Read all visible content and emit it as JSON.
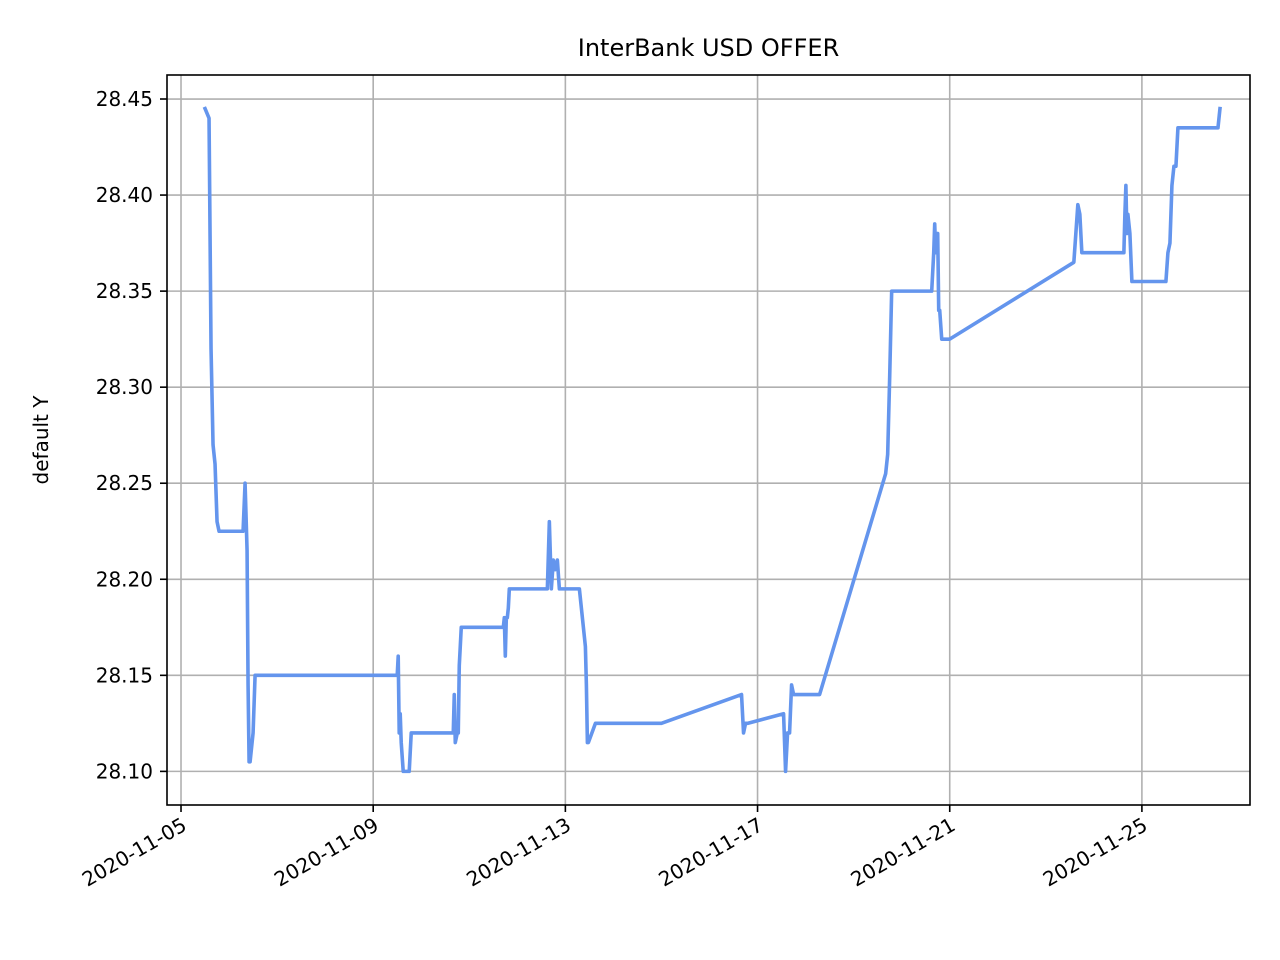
{
  "chart_data": {
    "type": "line",
    "title": "InterBank USD  OFFER",
    "xlabel": "",
    "ylabel": "default Y",
    "x_type": "date",
    "xlim": [
      "2020-11-04T17:00",
      "2020-11-27T06:00"
    ],
    "ylim": [
      28.0825,
      28.4625
    ],
    "grid": true,
    "line_color": "#6495ED",
    "x_ticks": [
      "2020-11-05",
      "2020-11-09",
      "2020-11-13",
      "2020-11-17",
      "2020-11-21",
      "2020-11-25"
    ],
    "y_ticks": [
      "28.10",
      "28.15",
      "28.20",
      "28.25",
      "28.30",
      "28.35",
      "28.40",
      "28.45"
    ],
    "series": [
      {
        "x": [
          "2020-11-05T12:00",
          "2020-11-05T14:00",
          "2020-11-05T15:00",
          "2020-11-05T16:00",
          "2020-11-05T17:00",
          "2020-11-05T18:00",
          "2020-11-05T19:00",
          "2020-11-05T20:00",
          "2020-11-05T21:00",
          "2020-11-05T22:00",
          "2020-11-06T07:00",
          "2020-11-06T08:00",
          "2020-11-06T09:00",
          "2020-11-06T09:30",
          "2020-11-06T10:00",
          "2020-11-06T10:30",
          "2020-11-06T11:00",
          "2020-11-06T12:00",
          "2020-11-06T13:00",
          "2020-11-06T13:30",
          "2020-11-06T14:00",
          "2020-11-06T15:00",
          "2020-11-06T16:00",
          "2020-11-09T12:00",
          "2020-11-09T12:30",
          "2020-11-09T13:00",
          "2020-11-09T13:30",
          "2020-11-09T14:00",
          "2020-11-09T15:00",
          "2020-11-09T16:00",
          "2020-11-09T18:00",
          "2020-11-09T19:00",
          "2020-11-09T20:00",
          "2020-11-09T21:00",
          "2020-11-10T16:00",
          "2020-11-10T16:30",
          "2020-11-10T17:00",
          "2020-11-10T18:00",
          "2020-11-10T18:30",
          "2020-11-10T19:00",
          "2020-11-10T20:00",
          "2020-11-10T21:00",
          "2020-11-10T22:00",
          "2020-11-11T17:00",
          "2020-11-11T17:30",
          "2020-11-11T18:00",
          "2020-11-11T18:30",
          "2020-11-11T19:00",
          "2020-11-11T19:30",
          "2020-11-11T20:00",
          "2020-11-11T21:00",
          "2020-11-11T22:00",
          "2020-11-12T15:00",
          "2020-11-12T16:00",
          "2020-11-12T17:00",
          "2020-11-12T18:00",
          "2020-11-12T19:00",
          "2020-11-12T20:00",
          "2020-11-12T21:00",
          "2020-11-12T22:00",
          "2020-11-13T07:00",
          "2020-11-13T10:00",
          "2020-11-13T10:30",
          "2020-11-13T11:00",
          "2020-11-13T11:30",
          "2020-11-13T15:00",
          "2020-11-15T00:00",
          "2020-11-16T16:00",
          "2020-11-16T17:00",
          "2020-11-16T18:00",
          "2020-11-16T19:00",
          "2020-11-17T13:00",
          "2020-11-17T14:00",
          "2020-11-17T15:00",
          "2020-11-17T16:00",
          "2020-11-17T17:00",
          "2020-11-17T18:00",
          "2020-11-17T19:00",
          "2020-11-17T20:00",
          "2020-11-17T22:00",
          "2020-11-18T07:00",
          "2020-11-19T16:00",
          "2020-11-19T17:00",
          "2020-11-19T18:00",
          "2020-11-19T19:00",
          "2020-11-19T20:00",
          "2020-11-19T21:00",
          "2020-11-19T22:00",
          "2020-11-20T15:00",
          "2020-11-20T15:30",
          "2020-11-20T16:00",
          "2020-11-20T16:30",
          "2020-11-20T17:00",
          "2020-11-20T18:00",
          "2020-11-20T18:30",
          "2020-11-20T19:00",
          "2020-11-20T20:00",
          "2020-11-20T21:00",
          "2020-11-20T22:00",
          "2020-11-21T00:00",
          "2020-11-23T14:00",
          "2020-11-23T15:00",
          "2020-11-23T16:00",
          "2020-11-23T17:00",
          "2020-11-23T18:00",
          "2020-11-23T19:00",
          "2020-11-23T20:00",
          "2020-11-24T15:00",
          "2020-11-24T15:30",
          "2020-11-24T16:00",
          "2020-11-24T16:30",
          "2020-11-24T17:00",
          "2020-11-24T18:00",
          "2020-11-24T19:00",
          "2020-11-24T20:00",
          "2020-11-24T21:00",
          "2020-11-24T22:00",
          "2020-11-25T12:00",
          "2020-11-25T13:00",
          "2020-11-25T14:00",
          "2020-11-25T15:00",
          "2020-11-25T16:00",
          "2020-11-25T17:00",
          "2020-11-25T18:00",
          "2020-11-25T20:00",
          "2020-11-26T14:00",
          "2020-11-26T15:00"
        ],
        "y": [
          28.445,
          28.44,
          28.32,
          28.27,
          28.26,
          28.23,
          28.225,
          28.225,
          28.225,
          28.225,
          28.225,
          28.25,
          28.215,
          28.145,
          28.105,
          28.105,
          28.11,
          28.12,
          28.15,
          28.15,
          28.15,
          28.15,
          28.15,
          28.15,
          28.16,
          28.12,
          28.13,
          28.115,
          28.1,
          28.1,
          28.1,
          28.12,
          28.12,
          28.12,
          28.12,
          28.14,
          28.115,
          28.12,
          28.12,
          28.155,
          28.175,
          28.175,
          28.175,
          28.175,
          28.18,
          28.16,
          28.18,
          28.18,
          28.185,
          28.195,
          28.195,
          28.195,
          28.195,
          28.23,
          28.195,
          28.21,
          28.205,
          28.21,
          28.195,
          28.195,
          28.195,
          28.165,
          28.145,
          28.115,
          28.115,
          28.125,
          28.125,
          28.14,
          28.12,
          28.125,
          28.125,
          28.13,
          28.1,
          28.12,
          28.12,
          28.145,
          28.14,
          28.14,
          28.14,
          28.14,
          28.14,
          28.255,
          28.265,
          28.305,
          28.35,
          28.35,
          28.35,
          28.35,
          28.35,
          28.36,
          28.37,
          28.385,
          28.37,
          28.38,
          28.34,
          28.34,
          28.325,
          28.325,
          28.325,
          28.325,
          28.365,
          28.38,
          28.395,
          28.39,
          28.37,
          28.37,
          28.37,
          28.37,
          28.39,
          28.405,
          28.38,
          28.39,
          28.38,
          28.355,
          28.355,
          28.355,
          28.355,
          28.355,
          28.37,
          28.375,
          28.405,
          28.415,
          28.415,
          28.435,
          28.435,
          28.435,
          28.445
        ]
      }
    ]
  }
}
